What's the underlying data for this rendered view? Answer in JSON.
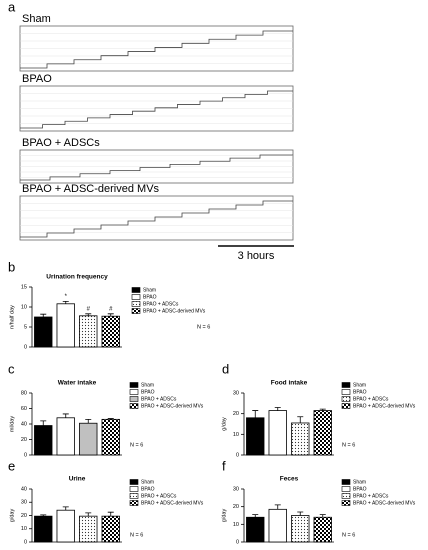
{
  "panel_labels": [
    "a",
    "b",
    "c",
    "d",
    "e",
    "f"
  ],
  "traces": {
    "labels": [
      "Sham",
      "BPAO",
      "BPAO + ADSCs",
      "BPAO + ADSC-derived MVs"
    ],
    "scale_bar": "3 hours"
  },
  "chart_data": [
    {
      "type": "bar",
      "title": "Urination frequency",
      "y_label": "n/half day",
      "note": "N = 6",
      "categories": [
        "Sham",
        "BPAO",
        "BPAO + ADSCs",
        "BPAO + ADSC-derived MVs"
      ],
      "values": [
        7.5,
        10.8,
        7.8,
        7.7
      ],
      "errors": [
        0.7,
        0.6,
        0.5,
        0.6
      ],
      "fills": [
        "#000000",
        "#ffffff",
        "dots",
        "checker"
      ],
      "annotations": [
        {
          "category": 1,
          "text": "*"
        },
        {
          "category": 2,
          "text": "#"
        },
        {
          "category": 3,
          "text": "#"
        }
      ],
      "ylim": [
        0,
        15
      ],
      "yticks": [
        0,
        5,
        10,
        15
      ]
    },
    {
      "type": "bar",
      "title": "Water intake",
      "y_label": "ml/day",
      "note": "N = 6",
      "categories": [
        "Sham",
        "BPAO",
        "BPAO + ADSCs",
        "BPAO + ADSC-derived MVs"
      ],
      "values": [
        38,
        48,
        41,
        46
      ],
      "errors": [
        6,
        5,
        5,
        1
      ],
      "fills": [
        "#000000",
        "#ffffff",
        "#c0c0c0",
        "checker"
      ],
      "ylim": [
        0,
        80
      ],
      "yticks": [
        0,
        20,
        40,
        60,
        80
      ]
    },
    {
      "type": "bar",
      "title": "Food intake",
      "y_label": "g/day",
      "note": "N = 6",
      "categories": [
        "Sham",
        "BPAO",
        "BPAO + ADSCs",
        "BPAO + ADSC-derived MVs"
      ],
      "values": [
        18,
        21.5,
        15.5,
        21.5
      ],
      "errors": [
        3.5,
        1.5,
        3,
        0.7
      ],
      "fills": [
        "#000000",
        "#ffffff",
        "dots",
        "checker"
      ],
      "ylim": [
        0,
        30
      ],
      "yticks": [
        0,
        10,
        20,
        30
      ]
    },
    {
      "type": "bar",
      "title": "Urine",
      "y_label": "g/day",
      "note": "N = 6",
      "categories": [
        "Sham",
        "BPAO",
        "BPAO + ADSCs",
        "BPAO + ADSC-derived MVs"
      ],
      "values": [
        19.5,
        24,
        19.5,
        19.5
      ],
      "errors": [
        1,
        2.5,
        2.5,
        3
      ],
      "fills": [
        "#000000",
        "#ffffff",
        "dots",
        "checker"
      ],
      "ylim": [
        0,
        40
      ],
      "yticks": [
        0,
        10,
        20,
        30,
        40
      ]
    },
    {
      "type": "bar",
      "title": "Feces",
      "y_label": "g/day",
      "note": "N = 6",
      "categories": [
        "Sham",
        "BPAO",
        "BPAO + ADSCs",
        "BPAO + ADSC-derived MVs"
      ],
      "values": [
        14,
        18.5,
        15,
        14
      ],
      "errors": [
        1.5,
        2.5,
        2,
        1.5
      ],
      "fills": [
        "#000000",
        "#ffffff",
        "dots",
        "checker"
      ],
      "ylim": [
        0,
        30
      ],
      "yticks": [
        0,
        10,
        20,
        30
      ]
    }
  ]
}
